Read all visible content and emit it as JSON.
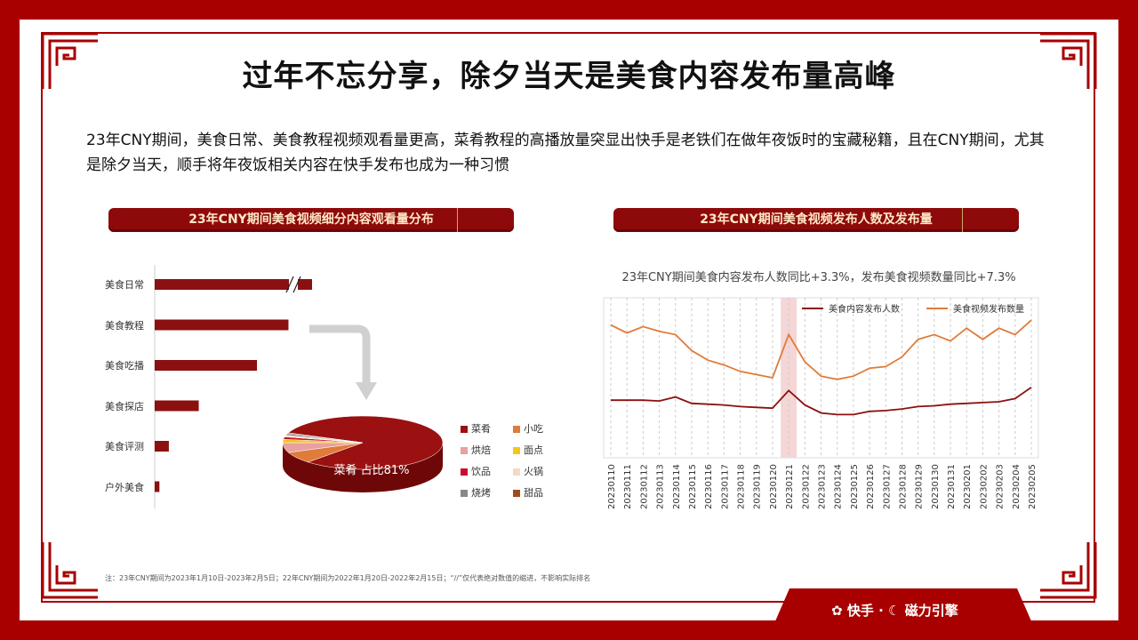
{
  "title": "过年不忘分享，除夕当天是美食内容发布量高峰",
  "description": "23年CNY期间，美食日常、美食教程视频观看量更高，菜肴教程的高播放量突显出快手是老铁们在做年夜饭时的宝藏秘籍，且在CNY期间，尤其是除夕当天，顺手将年夜饭相关内容在快手发布也成为一种习惯",
  "left_banner": "23年CNY期间美食视频细分内容观看量分布",
  "right_banner": "23年CNY期间美食视频发布人数及发布量",
  "right_subtitle": "23年CNY期间美食内容发布人数同比+3.3%，发布美食视频数量同比+7.3%",
  "pie_label": "菜肴 占比81%",
  "footnote": "注：23年CNY期间为2023年1月10日-2023年2月5日；22年CNY期间为2022年1月20日-2022年2月15日；“//”仅代表绝对数值的缩进，不影响实际排名",
  "footer": {
    "brand1": "快手",
    "sep": "·",
    "brand2": "磁力引擎"
  },
  "colors": {
    "primary": "#a80000",
    "dark_red": "#8b1010",
    "orange": "#e07b39",
    "highlight": "#f5d6d6"
  },
  "chart_data": [
    {
      "type": "bar",
      "orientation": "horizontal",
      "categories": [
        "美食日常",
        "美食教程",
        "美食吃播",
        "美食探店",
        "美食评测",
        "户外美食"
      ],
      "values": [
        100,
        85,
        65,
        28,
        9,
        3
      ],
      "axis_break_on": "美食日常",
      "color": "#8b1010"
    },
    {
      "type": "pie",
      "labels": [
        "菜肴",
        "小吃",
        "烘焙",
        "面点",
        "饮品",
        "火锅",
        "烧烤",
        "甜品"
      ],
      "values": [
        81,
        7,
        6,
        2,
        1.5,
        1,
        1,
        0.5
      ],
      "colors": [
        "#9b1010",
        "#e07b39",
        "#e8a0a0",
        "#f5c518",
        "#c8102e",
        "#f3d9c6",
        "#888888",
        "#a04a1a"
      ]
    },
    {
      "type": "line",
      "x": [
        "20230110",
        "20230111",
        "20230112",
        "20230113",
        "20230114",
        "20230115",
        "20230116",
        "20230117",
        "20230118",
        "20230119",
        "20230120",
        "20230121",
        "20230122",
        "20230123",
        "20230124",
        "20230125",
        "20230126",
        "20230127",
        "20230128",
        "20230129",
        "20230130",
        "20230131",
        "20230201",
        "20230202",
        "20230203",
        "20230204",
        "20230205"
      ],
      "highlight_x": "20230121",
      "series": [
        {
          "name": "美食内容发布人数",
          "color": "#8b1010",
          "values": [
            36,
            36,
            36,
            35.5,
            38,
            34,
            33.5,
            33,
            32,
            31.5,
            31,
            42,
            33,
            28,
            27,
            27,
            29,
            29.5,
            30.5,
            32,
            32.5,
            33.5,
            34,
            34.5,
            35,
            37,
            44
          ]
        },
        {
          "name": "美食视频发布数量",
          "color": "#e07b39",
          "values": [
            83,
            78,
            82,
            79,
            77,
            67,
            61,
            58,
            54,
            52,
            50,
            77,
            60,
            51,
            49,
            51,
            56,
            57,
            63,
            74,
            77,
            73,
            81,
            74,
            81,
            77,
            86
          ]
        }
      ],
      "ylim": [
        0,
        100
      ]
    }
  ]
}
